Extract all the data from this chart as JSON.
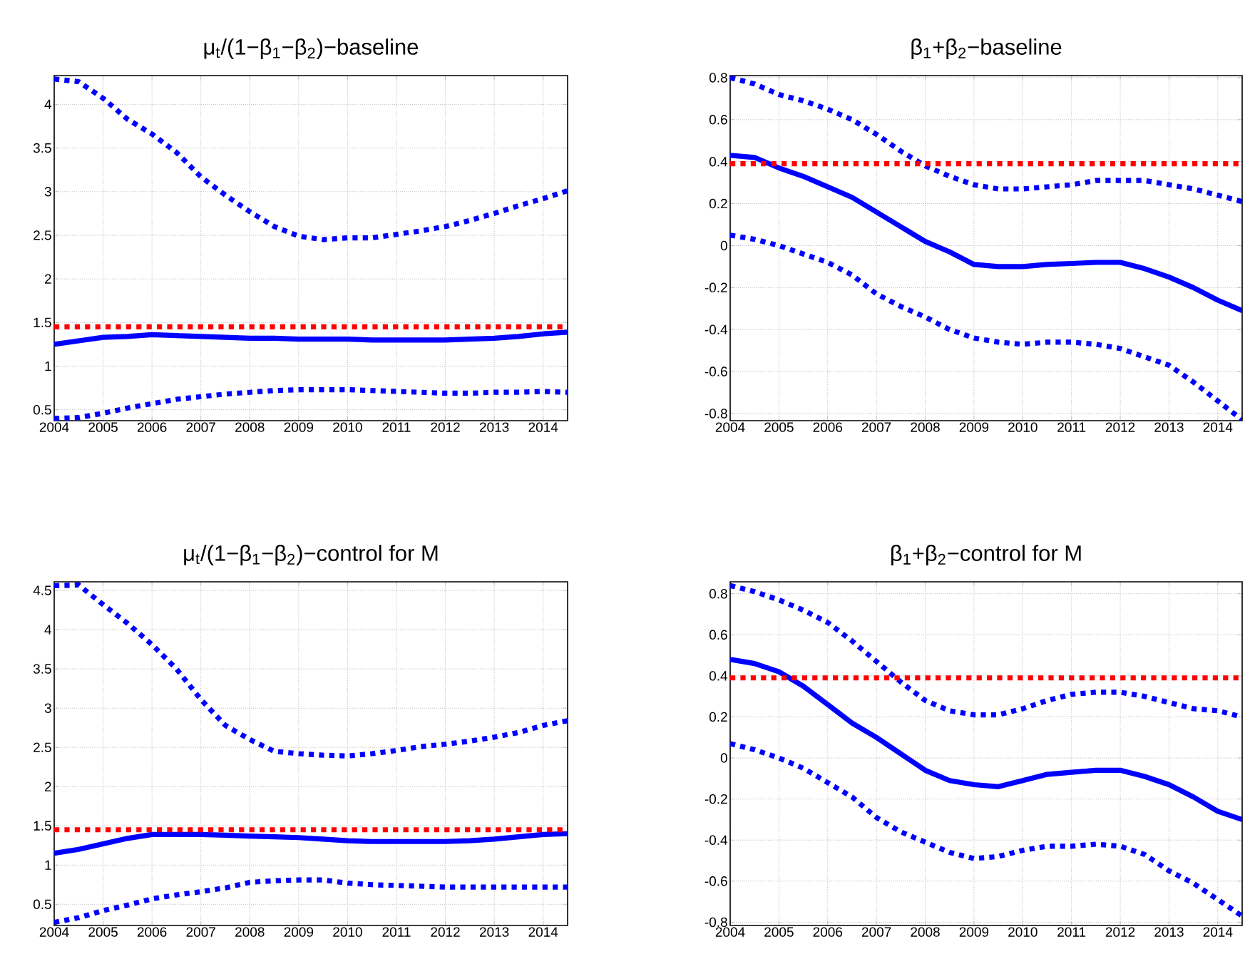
{
  "chart_data": [
    {
      "type": "line",
      "title": "μ$_{t}$/(1−β$_{1}$−β$_{2}$)−baseline",
      "x": [
        2004,
        2004.5,
        2005,
        2005.5,
        2006,
        2006.5,
        2007,
        2007.5,
        2008,
        2008.5,
        2009,
        2009.5,
        2010,
        2010.5,
        2011,
        2011.5,
        2012,
        2012.5,
        2013,
        2013.5,
        2014,
        2014.5
      ],
      "xlim": [
        2004,
        2014.5
      ],
      "ylim": [
        0.375,
        4.33
      ],
      "xticks": [
        2004,
        2005,
        2006,
        2007,
        2008,
        2009,
        2010,
        2011,
        2012,
        2013,
        2014
      ],
      "yticks": [
        0.5,
        1,
        1.5,
        2,
        2.5,
        3,
        3.5,
        4
      ],
      "grid": true,
      "marker": "none",
      "series": [
        {
          "color": "#0000ff",
          "line_style": "dotted",
          "values": [
            4.29,
            4.26,
            4.07,
            3.83,
            3.66,
            3.45,
            3.17,
            2.96,
            2.77,
            2.6,
            2.49,
            2.45,
            2.47,
            2.47,
            2.51,
            2.55,
            2.6,
            2.67,
            2.75,
            2.84,
            2.92,
            3.01
          ]
        },
        {
          "color": "#0000ff",
          "line_style": "solid",
          "values": [
            1.25,
            1.29,
            1.33,
            1.34,
            1.36,
            1.35,
            1.34,
            1.33,
            1.32,
            1.32,
            1.31,
            1.31,
            1.31,
            1.3,
            1.3,
            1.3,
            1.3,
            1.31,
            1.32,
            1.34,
            1.37,
            1.39
          ]
        },
        {
          "color": "#0000ff",
          "line_style": "dotted",
          "values": [
            0.4,
            0.41,
            0.46,
            0.52,
            0.57,
            0.62,
            0.65,
            0.68,
            0.7,
            0.72,
            0.73,
            0.73,
            0.73,
            0.72,
            0.71,
            0.7,
            0.69,
            0.69,
            0.7,
            0.7,
            0.71,
            0.7
          ]
        }
      ],
      "ref_lines": [
        {
          "axis": "y",
          "value": 1.45,
          "color": "#ff0000",
          "line_style": "dotted"
        }
      ]
    },
    {
      "type": "line",
      "title": "β$_{1}$+β$_{2}$−baseline",
      "x": [
        2004,
        2004.5,
        2005,
        2005.5,
        2006,
        2006.5,
        2007,
        2007.5,
        2008,
        2008.5,
        2009,
        2009.5,
        2010,
        2010.5,
        2011,
        2011.5,
        2012,
        2012.5,
        2013,
        2013.5,
        2014,
        2014.5
      ],
      "xlim": [
        2004,
        2014.5
      ],
      "ylim": [
        -0.834,
        0.81
      ],
      "xticks": [
        2004,
        2005,
        2006,
        2007,
        2008,
        2009,
        2010,
        2011,
        2012,
        2013,
        2014
      ],
      "yticks": [
        -0.8,
        -0.6,
        -0.4,
        -0.2,
        0,
        0.2,
        0.4,
        0.6,
        0.8
      ],
      "grid": true,
      "marker": "none",
      "series": [
        {
          "color": "#0000ff",
          "line_style": "dotted",
          "values": [
            0.8,
            0.77,
            0.72,
            0.69,
            0.65,
            0.6,
            0.53,
            0.45,
            0.38,
            0.33,
            0.29,
            0.27,
            0.27,
            0.28,
            0.29,
            0.31,
            0.31,
            0.31,
            0.29,
            0.27,
            0.24,
            0.21
          ]
        },
        {
          "color": "#0000ff",
          "line_style": "solid",
          "values": [
            0.43,
            0.42,
            0.37,
            0.33,
            0.28,
            0.23,
            0.16,
            0.09,
            0.02,
            -0.03,
            -0.09,
            -0.1,
            -0.1,
            -0.09,
            -0.085,
            -0.08,
            -0.08,
            -0.11,
            -0.15,
            -0.2,
            -0.26,
            -0.31
          ]
        },
        {
          "color": "#0000ff",
          "line_style": "dotted",
          "values": [
            0.05,
            0.03,
            0.0,
            -0.04,
            -0.08,
            -0.14,
            -0.23,
            -0.29,
            -0.34,
            -0.4,
            -0.44,
            -0.46,
            -0.47,
            -0.46,
            -0.46,
            -0.47,
            -0.49,
            -0.53,
            -0.57,
            -0.65,
            -0.74,
            -0.83
          ]
        }
      ],
      "ref_lines": [
        {
          "axis": "y",
          "value": 0.39,
          "color": "#ff0000",
          "line_style": "dotted"
        }
      ]
    },
    {
      "type": "line",
      "title": "μ$_{t}$/(1−β$_{1}$−β$_{2}$)−control for M",
      "x": [
        2004,
        2004.5,
        2005,
        2005.5,
        2006,
        2006.5,
        2007,
        2007.5,
        2008,
        2008.5,
        2009,
        2009.5,
        2010,
        2010.5,
        2011,
        2011.5,
        2012,
        2012.5,
        2013,
        2013.5,
        2014,
        2014.5
      ],
      "xlim": [
        2004,
        2014.5
      ],
      "ylim": [
        0.23,
        4.61
      ],
      "xticks": [
        2004,
        2005,
        2006,
        2007,
        2008,
        2009,
        2010,
        2011,
        2012,
        2013,
        2014
      ],
      "yticks": [
        0.5,
        1,
        1.5,
        2,
        2.5,
        3,
        3.5,
        4,
        4.5
      ],
      "grid": true,
      "marker": "none",
      "series": [
        {
          "color": "#0000ff",
          "line_style": "dotted",
          "values": [
            4.56,
            4.57,
            4.32,
            4.08,
            3.81,
            3.5,
            3.11,
            2.78,
            2.6,
            2.45,
            2.42,
            2.4,
            2.39,
            2.42,
            2.46,
            2.51,
            2.54,
            2.58,
            2.63,
            2.69,
            2.78,
            2.84
          ]
        },
        {
          "color": "#0000ff",
          "line_style": "solid",
          "values": [
            1.15,
            1.2,
            1.27,
            1.34,
            1.39,
            1.39,
            1.39,
            1.38,
            1.37,
            1.36,
            1.35,
            1.33,
            1.31,
            1.3,
            1.3,
            1.3,
            1.3,
            1.31,
            1.33,
            1.36,
            1.39,
            1.4
          ]
        },
        {
          "color": "#0000ff",
          "line_style": "dotted",
          "values": [
            0.27,
            0.33,
            0.42,
            0.49,
            0.57,
            0.62,
            0.66,
            0.71,
            0.78,
            0.8,
            0.81,
            0.81,
            0.77,
            0.75,
            0.74,
            0.73,
            0.72,
            0.72,
            0.72,
            0.72,
            0.72,
            0.72
          ]
        }
      ],
      "ref_lines": [
        {
          "axis": "y",
          "value": 1.45,
          "color": "#ff0000",
          "line_style": "dotted"
        }
      ]
    },
    {
      "type": "line",
      "title": "β$_{1}$+β$_{2}$−control for M",
      "x": [
        2004,
        2004.5,
        2005,
        2005.5,
        2006,
        2006.5,
        2007,
        2007.5,
        2008,
        2008.5,
        2009,
        2009.5,
        2010,
        2010.5,
        2011,
        2011.5,
        2012,
        2012.5,
        2013,
        2013.5,
        2014,
        2014.5
      ],
      "xlim": [
        2004,
        2014.5
      ],
      "ylim": [
        -0.816,
        0.858
      ],
      "xticks": [
        2004,
        2005,
        2006,
        2007,
        2008,
        2009,
        2010,
        2011,
        2012,
        2013,
        2014
      ],
      "yticks": [
        -0.8,
        -0.6,
        -0.4,
        -0.2,
        0,
        0.2,
        0.4,
        0.6,
        0.8
      ],
      "grid": true,
      "marker": "none",
      "series": [
        {
          "color": "#0000ff",
          "line_style": "dotted",
          "values": [
            0.84,
            0.81,
            0.77,
            0.72,
            0.66,
            0.57,
            0.47,
            0.37,
            0.28,
            0.23,
            0.21,
            0.21,
            0.24,
            0.28,
            0.31,
            0.32,
            0.32,
            0.3,
            0.27,
            0.24,
            0.23,
            0.2
          ]
        },
        {
          "color": "#0000ff",
          "line_style": "solid",
          "values": [
            0.48,
            0.46,
            0.42,
            0.35,
            0.26,
            0.17,
            0.1,
            0.02,
            -0.06,
            -0.11,
            -0.13,
            -0.14,
            -0.11,
            -0.08,
            -0.07,
            -0.06,
            -0.06,
            -0.09,
            -0.13,
            -0.19,
            -0.26,
            -0.3
          ]
        },
        {
          "color": "#0000ff",
          "line_style": "dotted",
          "values": [
            0.07,
            0.04,
            0.0,
            -0.05,
            -0.12,
            -0.19,
            -0.29,
            -0.36,
            -0.41,
            -0.46,
            -0.49,
            -0.48,
            -0.45,
            -0.43,
            -0.43,
            -0.42,
            -0.43,
            -0.47,
            -0.55,
            -0.61,
            -0.69,
            -0.77
          ]
        }
      ],
      "ref_lines": [
        {
          "axis": "y",
          "value": 0.39,
          "color": "#ff0000",
          "line_style": "dotted"
        }
      ]
    }
  ]
}
